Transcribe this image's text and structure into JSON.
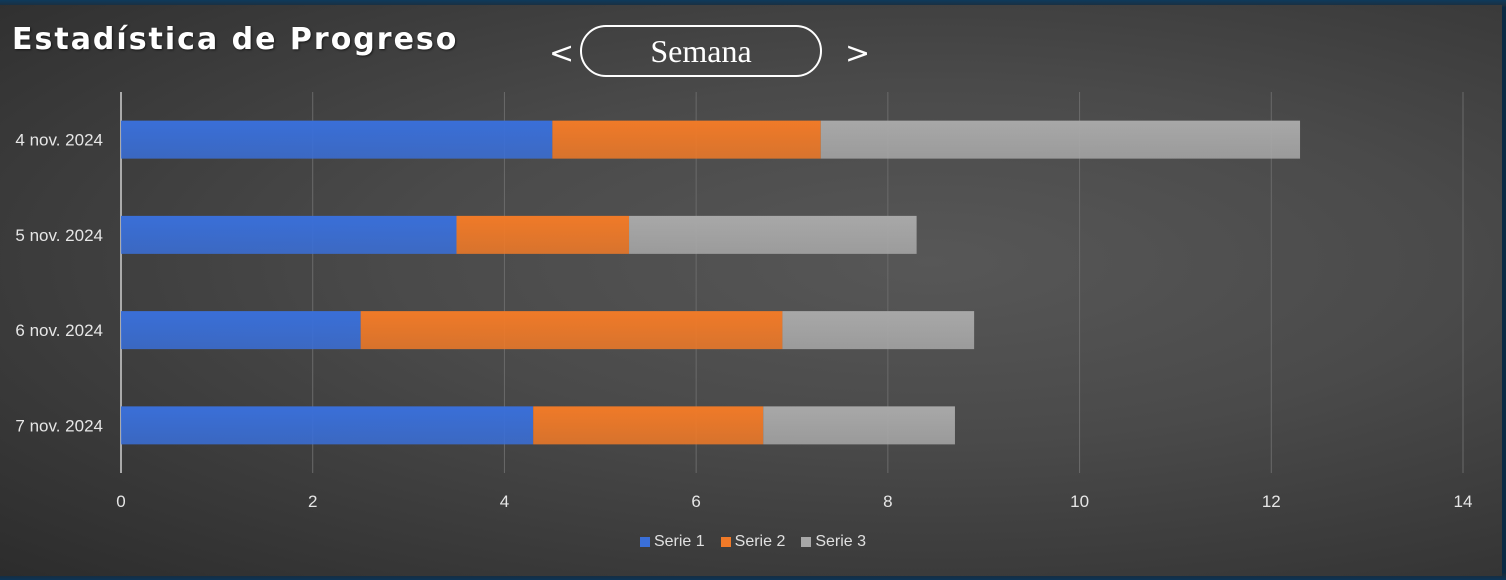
{
  "header": {
    "title": "Estadística de Progreso",
    "prev_label": "<",
    "next_label": ">",
    "period_label": "Semana"
  },
  "colors": {
    "series1": "#3a6fd8",
    "series2": "#f07a28",
    "series3": "#a8a8a8",
    "grid": "#6a6a6a",
    "axis_text": "#e6e6e6"
  },
  "chart_data": {
    "type": "bar",
    "orientation": "horizontal",
    "stacked": true,
    "categories": [
      "4 nov. 2024",
      "5 nov. 2024",
      "6 nov. 2024",
      "7 nov. 2024"
    ],
    "series": [
      {
        "name": "Serie 1",
        "values": [
          4.5,
          3.5,
          2.5,
          4.3
        ]
      },
      {
        "name": "Serie 2",
        "values": [
          2.8,
          1.8,
          4.4,
          2.4
        ]
      },
      {
        "name": "Serie 3",
        "values": [
          5.0,
          3.0,
          2.0,
          2.0
        ]
      }
    ],
    "xlim": [
      0,
      14
    ],
    "xticks": [
      0,
      2,
      4,
      6,
      8,
      10,
      12,
      14
    ],
    "grid": true,
    "legend_position": "bottom"
  }
}
